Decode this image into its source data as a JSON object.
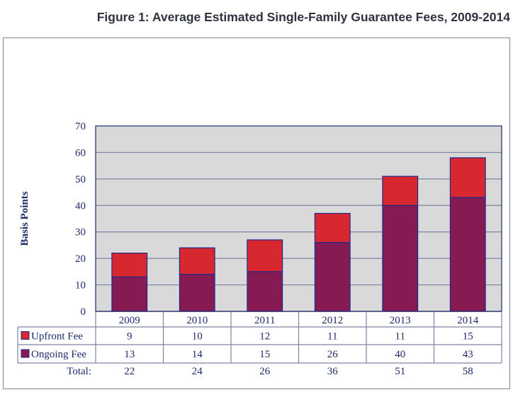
{
  "chart_data": {
    "type": "bar",
    "stacked": true,
    "title": "Figure 1: Average Estimated Single-Family Guarantee Fees, 2009-2014",
    "xlabel": "",
    "ylabel": "Basis Points",
    "ylim": [
      0,
      70
    ],
    "yticks": [
      0,
      10,
      20,
      30,
      40,
      50,
      60,
      70
    ],
    "grid": true,
    "legend": "data-table-left",
    "categories": [
      "2009",
      "2010",
      "2011",
      "2012",
      "2013",
      "2014"
    ],
    "series": [
      {
        "name": "Ongoing Fee",
        "color": "#851b52",
        "values": [
          13,
          14,
          15,
          26,
          40,
          43
        ]
      },
      {
        "name": "Upfront Fee",
        "color": "#d7282f",
        "values": [
          9,
          10,
          12,
          11,
          11,
          15
        ]
      }
    ],
    "table": {
      "rows": [
        {
          "label": "Upfront Fee",
          "series": "Upfront Fee",
          "values": [
            "9",
            "10",
            "12",
            "11",
            "11",
            "15"
          ]
        },
        {
          "label": "Ongoing Fee",
          "series": "Ongoing Fee",
          "values": [
            "13",
            "14",
            "15",
            "26",
            "40",
            "43"
          ]
        }
      ],
      "total_label": "Total:",
      "totals": [
        "22",
        "24",
        "26",
        "36",
        "51",
        "58"
      ]
    }
  },
  "colors": {
    "plot_bg": "#d9d9d9",
    "grid": "#7f83a3",
    "axis": "#1f2a6b",
    "bar_outline": "#1f2a8f"
  }
}
